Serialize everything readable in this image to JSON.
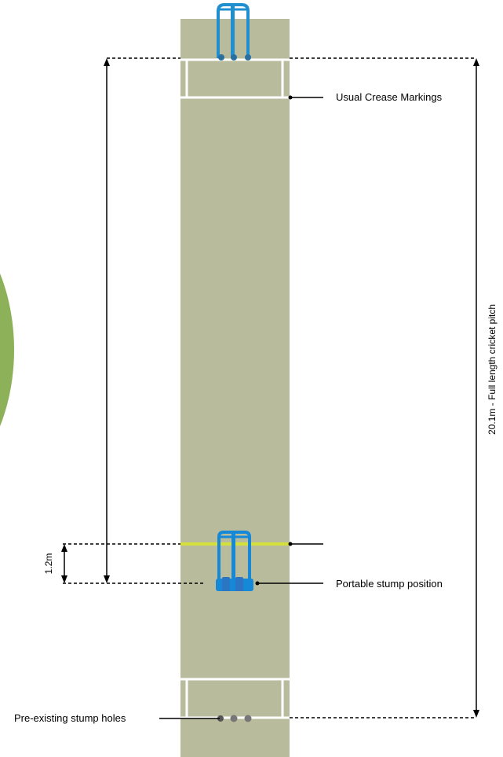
{
  "labels": {
    "usual_crease": "Usual Crease Markings",
    "portable_stump": "Portable stump position",
    "preexisting_holes": "Pre-existing stump holes",
    "full_length": "20.1m - Full length cricket pitch",
    "offset": "1.2m"
  },
  "colors": {
    "pitch": "#b9bc9c",
    "outfield": "#8db158",
    "crease_lines": "#ffffff",
    "wicket_blue": "#1f8fd0",
    "portable_blue": "#1588d8",
    "yellow_line": "#d6e03a",
    "stump_hole": "#777777"
  }
}
